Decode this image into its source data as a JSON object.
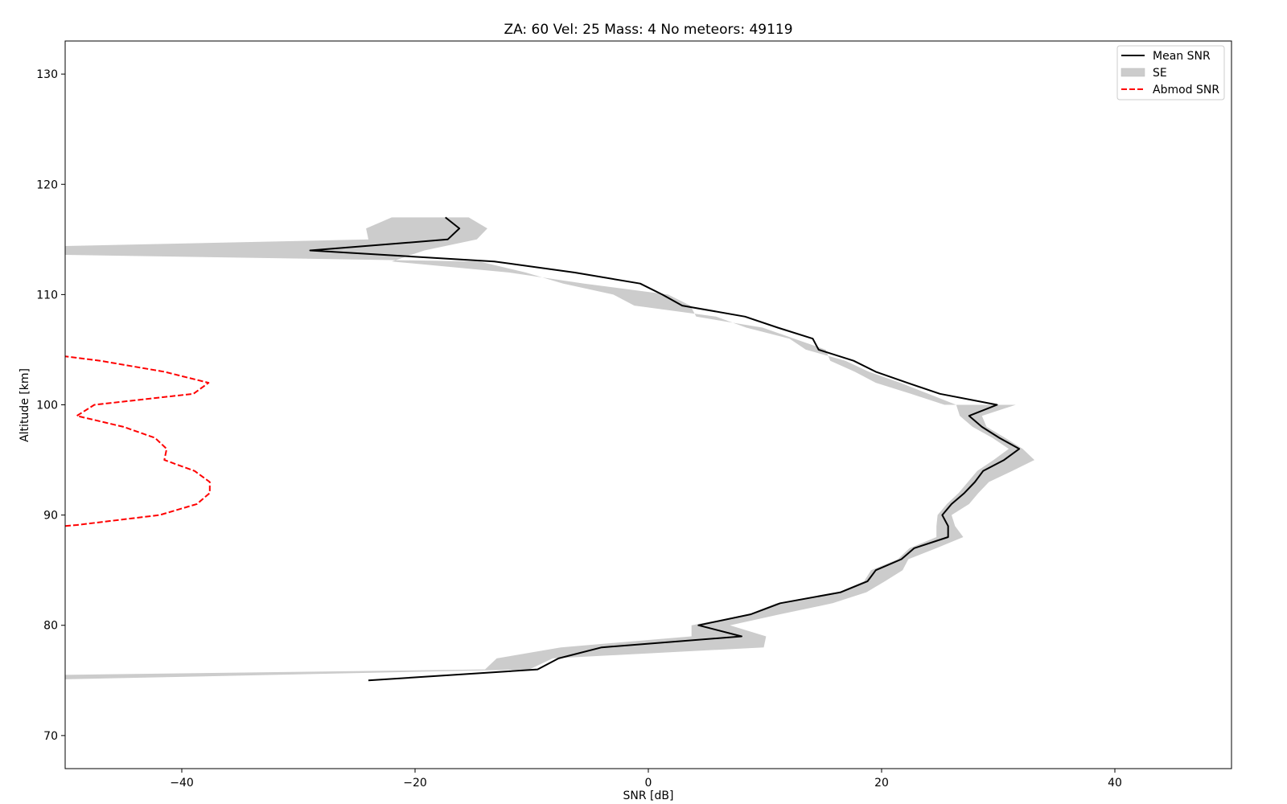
{
  "chart_data": {
    "type": "line",
    "title": "ZA: 60 Vel: 25 Mass: 4 No meteors: 49119",
    "xlabel": "SNR [dB]",
    "ylabel": "Altitude [km]",
    "xlim": [
      -50,
      50
    ],
    "ylim": [
      67,
      133
    ],
    "xticks": [
      -40,
      -20,
      0,
      20,
      40
    ],
    "yticks": [
      70,
      80,
      90,
      100,
      110,
      120,
      130
    ],
    "xtick_labels": [
      "−40",
      "−20",
      "0",
      "20",
      "40"
    ],
    "ytick_labels": [
      "70",
      "80",
      "90",
      "100",
      "110",
      "120",
      "130"
    ],
    "grid": false,
    "legend_position": "top-right",
    "legend": [
      {
        "label": "Mean SNR",
        "kind": "line",
        "color": "#000000"
      },
      {
        "label": "SE",
        "kind": "patch",
        "color": "#cccccc"
      },
      {
        "label": "Abmod SNR",
        "kind": "dashed",
        "color": "#ff0000"
      }
    ],
    "series": [
      {
        "name": "Mean SNR",
        "color": "#000000",
        "points": [
          [
            -24,
            75
          ],
          [
            -9.5,
            76
          ],
          [
            -7.7,
            77
          ],
          [
            -4,
            78
          ],
          [
            8,
            79
          ],
          [
            4.3,
            80
          ],
          [
            8.8,
            81
          ],
          [
            11.3,
            82
          ],
          [
            16.5,
            83
          ],
          [
            18.8,
            84
          ],
          [
            19.5,
            85
          ],
          [
            21.7,
            86
          ],
          [
            22.8,
            87
          ],
          [
            25.7,
            88
          ],
          [
            25.7,
            89
          ],
          [
            25.2,
            90
          ],
          [
            26,
            91
          ],
          [
            27.1,
            92
          ],
          [
            28,
            93
          ],
          [
            28.7,
            94
          ],
          [
            30.5,
            95
          ],
          [
            31.8,
            96
          ],
          [
            30.1,
            97
          ],
          [
            28.6,
            98
          ],
          [
            27.5,
            99
          ],
          [
            29.9,
            100
          ],
          [
            25,
            101
          ],
          [
            22.2,
            102
          ],
          [
            19.5,
            103
          ],
          [
            17.6,
            104
          ],
          [
            14.6,
            105
          ],
          [
            14.1,
            106
          ],
          [
            11.1,
            107
          ],
          [
            8.3,
            108
          ],
          [
            2.9,
            109
          ],
          [
            1.2,
            110
          ],
          [
            -0.7,
            111
          ],
          [
            -6.3,
            112
          ],
          [
            -13.2,
            113
          ],
          [
            -29,
            114
          ],
          [
            -17.2,
            115
          ],
          [
            -16.2,
            116
          ],
          [
            -17.4,
            117
          ]
        ]
      },
      {
        "name": "SE",
        "color": "#cccccc",
        "lower": [
          [
            -50,
            75.1
          ],
          [
            -50,
            75.5
          ],
          [
            -14,
            76
          ],
          [
            -13,
            77
          ],
          [
            -7.5,
            78
          ],
          [
            3.7,
            79
          ],
          [
            3.7,
            80
          ],
          [
            8.6,
            81
          ],
          [
            11,
            82
          ],
          [
            16.3,
            83
          ],
          [
            18.5,
            84
          ],
          [
            19.1,
            85
          ],
          [
            21.4,
            86
          ],
          [
            22.4,
            87
          ],
          [
            24.7,
            88
          ],
          [
            24.7,
            89
          ],
          [
            24.8,
            90
          ],
          [
            25.6,
            91
          ],
          [
            26.6,
            92
          ],
          [
            27.4,
            93
          ],
          [
            28.2,
            94
          ],
          [
            29.6,
            95
          ],
          [
            30.9,
            96
          ],
          [
            29.5,
            97
          ],
          [
            27.8,
            98
          ],
          [
            26.7,
            99
          ],
          [
            26.4,
            100
          ],
          [
            24,
            101
          ],
          [
            21.6,
            102
          ],
          [
            18.9,
            103
          ],
          [
            16.9,
            104
          ],
          [
            13.5,
            105
          ],
          [
            12.1,
            106
          ],
          [
            8.4,
            107
          ],
          [
            5.8,
            108
          ],
          [
            -1.2,
            109
          ],
          [
            -3,
            110
          ],
          [
            -7.3,
            111
          ],
          [
            -10.5,
            112
          ],
          [
            -14.5,
            113
          ],
          [
            -50,
            113.6
          ]
        ],
        "upper": [
          [
            -50,
            114.4
          ],
          [
            -24,
            115
          ],
          [
            -24.2,
            116
          ],
          [
            -22,
            117
          ],
          [
            -15.4,
            117
          ],
          [
            -13.8,
            116
          ],
          [
            -14.7,
            115
          ],
          [
            -19.2,
            114
          ],
          [
            -22,
            113
          ],
          [
            -11.9,
            112
          ],
          [
            -5.5,
            111
          ],
          [
            1.7,
            110
          ],
          [
            3.6,
            109
          ],
          [
            4.1,
            108
          ],
          [
            9.8,
            107
          ],
          [
            12.5,
            106
          ],
          [
            15.2,
            105
          ],
          [
            15.6,
            104
          ],
          [
            17.7,
            103
          ],
          [
            19.5,
            102
          ],
          [
            22.5,
            101
          ],
          [
            25.4,
            100
          ],
          [
            31.5,
            100
          ],
          [
            28.6,
            99
          ],
          [
            29,
            98
          ],
          [
            30.6,
            97
          ],
          [
            32.1,
            96
          ],
          [
            33.1,
            95
          ],
          [
            31.2,
            94
          ],
          [
            29.2,
            93
          ],
          [
            28.3,
            92
          ],
          [
            27.5,
            91
          ],
          [
            26,
            90
          ],
          [
            26.3,
            89
          ],
          [
            27,
            88
          ],
          [
            24.7,
            87
          ],
          [
            22.3,
            86
          ],
          [
            21.8,
            85
          ],
          [
            20.3,
            84
          ],
          [
            18.7,
            83
          ],
          [
            15.8,
            82
          ],
          [
            11.3,
            81
          ],
          [
            7,
            80
          ],
          [
            10.1,
            79
          ],
          [
            9.9,
            78
          ],
          [
            -8.2,
            77
          ],
          [
            -10.2,
            76
          ],
          [
            -50,
            75.1
          ]
        ]
      },
      {
        "name": "Abmod SNR",
        "color": "#ff0000",
        "dashed": true,
        "points": [
          [
            -50,
            89
          ],
          [
            -49,
            89.1
          ],
          [
            -41.9,
            90
          ],
          [
            -38.7,
            91
          ],
          [
            -37.6,
            92
          ],
          [
            -37.6,
            93
          ],
          [
            -38.9,
            94
          ],
          [
            -41.5,
            95
          ],
          [
            -41.3,
            96
          ],
          [
            -42.3,
            97
          ],
          [
            -45,
            98
          ],
          [
            -49,
            99
          ],
          [
            -47.5,
            100
          ],
          [
            -39,
            101
          ],
          [
            -37.7,
            102
          ],
          [
            -41.5,
            103
          ],
          [
            -47,
            104
          ],
          [
            -50,
            104.4
          ]
        ]
      }
    ]
  }
}
